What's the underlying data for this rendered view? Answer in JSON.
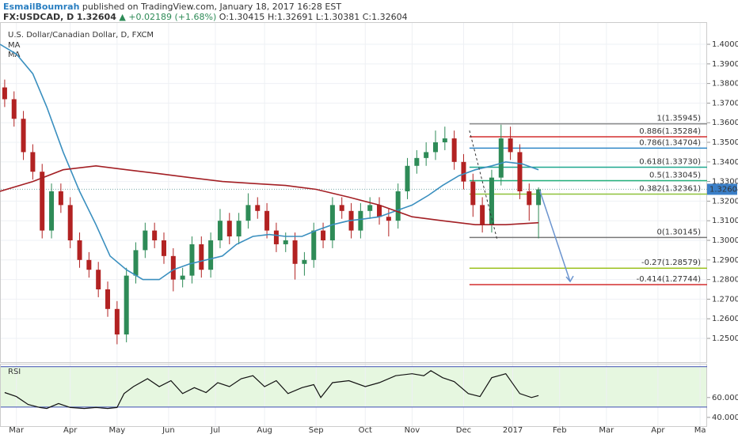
{
  "header": {
    "author": "EsmailBoumrah",
    "published": "published on TradingView.com, January 18, 2017 16:28 EST",
    "symbol": "FX:USDCAD, D",
    "price": "1.32604",
    "change": "▲ +0.02189 (+1.68%)",
    "open": "O:1.30415",
    "high": "H:1.32691",
    "low": "L:1.30381",
    "close": "C:1.32604"
  },
  "chart_data": {
    "type": "candlestick",
    "title": "U.S. Dollar/Canadian Dollar, D, FXCM",
    "up_color": "#2e8b57",
    "down_color": "#b22222",
    "xlim": [
      0,
      302
    ],
    "xticks": [
      {
        "value": 7,
        "label": "Mar"
      },
      {
        "value": 30,
        "label": "Apr"
      },
      {
        "value": 50,
        "label": "May"
      },
      {
        "value": 72,
        "label": "Jun"
      },
      {
        "value": 92,
        "label": "Jul"
      },
      {
        "value": 113,
        "label": "Aug"
      },
      {
        "value": 135,
        "label": "Sep"
      },
      {
        "value": 156,
        "label": "Oct"
      },
      {
        "value": 176,
        "label": "Nov"
      },
      {
        "value": 198,
        "label": "Dec"
      },
      {
        "value": 219,
        "label": "2017"
      },
      {
        "value": 239,
        "label": "Feb"
      },
      {
        "value": 259,
        "label": "Mar"
      },
      {
        "value": 281,
        "label": "Apr"
      },
      {
        "value": 299,
        "label": "Ma"
      }
    ],
    "ylim": [
      1.2379,
      1.4113
    ],
    "yticks": [
      {
        "value": 1.25,
        "label": "1.25000"
      },
      {
        "value": 1.26,
        "label": "1.26000"
      },
      {
        "value": 1.27,
        "label": "1.27000"
      },
      {
        "value": 1.28,
        "label": "1.28000"
      },
      {
        "value": 1.29,
        "label": "1.29000"
      },
      {
        "value": 1.3,
        "label": "1.30000"
      },
      {
        "value": 1.31,
        "label": "1.31000"
      },
      {
        "value": 1.32,
        "label": "1.32000"
      },
      {
        "value": 1.33,
        "label": "1.33000"
      },
      {
        "value": 1.34,
        "label": "1.34000"
      },
      {
        "value": 1.35,
        "label": "1.35000"
      },
      {
        "value": 1.36,
        "label": "1.36000"
      },
      {
        "value": 1.37,
        "label": "1.37000"
      },
      {
        "value": 1.38,
        "label": "1.38000"
      },
      {
        "value": 1.39,
        "label": "1.39000"
      },
      {
        "value": 1.4,
        "label": "1.40000"
      }
    ],
    "grid": true,
    "x": [
      2,
      6,
      10,
      14,
      18,
      22,
      26,
      30,
      34,
      38,
      42,
      46,
      50,
      54,
      58,
      62,
      66,
      70,
      74,
      78,
      82,
      86,
      90,
      94,
      98,
      102,
      106,
      110,
      114,
      118,
      122,
      126,
      130,
      134,
      138,
      142,
      146,
      150,
      154,
      158,
      162,
      166,
      170,
      174,
      178,
      182,
      186,
      190,
      194,
      198,
      202,
      206,
      210,
      214,
      218,
      222,
      226,
      230
    ],
    "open": [
      1.378,
      1.372,
      1.362,
      1.345,
      1.335,
      1.305,
      1.325,
      1.318,
      1.3,
      1.29,
      1.285,
      1.275,
      1.265,
      1.252,
      1.282,
      1.295,
      1.305,
      1.3,
      1.292,
      1.28,
      1.282,
      1.298,
      1.285,
      1.3,
      1.31,
      1.302,
      1.31,
      1.318,
      1.315,
      1.305,
      1.298,
      1.3,
      1.288,
      1.29,
      1.305,
      1.3,
      1.318,
      1.315,
      1.305,
      1.315,
      1.318,
      1.312,
      1.31,
      1.325,
      1.338,
      1.342,
      1.345,
      1.35,
      1.352,
      1.34,
      1.33,
      1.318,
      1.308,
      1.332,
      1.352,
      1.345,
      1.325,
      1.318
    ],
    "high": [
      1.382,
      1.376,
      1.366,
      1.349,
      1.339,
      1.329,
      1.329,
      1.322,
      1.304,
      1.294,
      1.289,
      1.279,
      1.269,
      1.286,
      1.299,
      1.309,
      1.309,
      1.304,
      1.296,
      1.286,
      1.302,
      1.302,
      1.304,
      1.316,
      1.314,
      1.314,
      1.324,
      1.322,
      1.319,
      1.309,
      1.304,
      1.304,
      1.294,
      1.309,
      1.309,
      1.322,
      1.322,
      1.319,
      1.319,
      1.322,
      1.322,
      1.316,
      1.329,
      1.342,
      1.346,
      1.35,
      1.356,
      1.358,
      1.356,
      1.344,
      1.334,
      1.322,
      1.336,
      1.359,
      1.358,
      1.349,
      1.329,
      1.327
    ],
    "low": [
      1.368,
      1.358,
      1.341,
      1.331,
      1.301,
      1.301,
      1.314,
      1.296,
      1.286,
      1.281,
      1.271,
      1.261,
      1.247,
      1.248,
      1.278,
      1.291,
      1.296,
      1.288,
      1.274,
      1.276,
      1.278,
      1.281,
      1.281,
      1.296,
      1.298,
      1.298,
      1.306,
      1.311,
      1.301,
      1.294,
      1.294,
      1.28,
      1.282,
      1.286,
      1.296,
      1.296,
      1.311,
      1.301,
      1.301,
      1.311,
      1.308,
      1.302,
      1.306,
      1.321,
      1.334,
      1.338,
      1.341,
      1.346,
      1.336,
      1.326,
      1.312,
      1.304,
      1.304,
      1.328,
      1.341,
      1.321,
      1.31,
      1.301
    ],
    "close": [
      1.372,
      1.362,
      1.345,
      1.335,
      1.305,
      1.325,
      1.318,
      1.3,
      1.29,
      1.285,
      1.275,
      1.265,
      1.252,
      1.282,
      1.295,
      1.305,
      1.3,
      1.292,
      1.28,
      1.282,
      1.298,
      1.285,
      1.3,
      1.31,
      1.302,
      1.31,
      1.318,
      1.315,
      1.305,
      1.298,
      1.3,
      1.288,
      1.29,
      1.305,
      1.3,
      1.318,
      1.315,
      1.305,
      1.315,
      1.318,
      1.312,
      1.31,
      1.325,
      1.338,
      1.342,
      1.345,
      1.35,
      1.352,
      1.34,
      1.33,
      1.318,
      1.308,
      1.332,
      1.352,
      1.345,
      1.325,
      1.318,
      1.326
    ],
    "series": [
      {
        "name": "MA",
        "color": "#3a8fbf",
        "x": [
          0,
          7,
          14,
          20,
          27,
          34,
          41,
          47,
          54,
          61,
          68,
          74,
          81,
          88,
          95,
          101,
          108,
          115,
          122,
          129,
          135,
          142,
          149,
          156,
          162,
          169,
          176,
          183,
          189,
          196,
          203,
          210,
          216,
          223,
          230
        ],
        "values": [
          1.4,
          1.395,
          1.385,
          1.368,
          1.345,
          1.325,
          1.308,
          1.292,
          1.285,
          1.28,
          1.28,
          1.285,
          1.288,
          1.29,
          1.292,
          1.298,
          1.302,
          1.303,
          1.302,
          1.302,
          1.305,
          1.308,
          1.31,
          1.311,
          1.312,
          1.315,
          1.318,
          1.323,
          1.328,
          1.333,
          1.336,
          1.338,
          1.34,
          1.339,
          1.336
        ]
      },
      {
        "name": "MA",
        "color": "#a31f24",
        "x": [
          0,
          14,
          27,
          41,
          54,
          68,
          81,
          95,
          108,
          122,
          135,
          149,
          162,
          176,
          189,
          203,
          216,
          230
        ],
        "values": [
          1.325,
          1.33,
          1.336,
          1.338,
          1.336,
          1.334,
          1.332,
          1.33,
          1.329,
          1.328,
          1.326,
          1.322,
          1.318,
          1.312,
          1.31,
          1.308,
          1.308,
          1.309
        ]
      }
    ],
    "last": {
      "value": 1.32604,
      "label": "1.32604",
      "color": "#3a7fc8"
    },
    "fib": {
      "start": 200.5,
      "levels": [
        {
          "value": 1.35945,
          "label": "1(1.35945)",
          "color": "#888888"
        },
        {
          "value": 1.35284,
          "label": "0.886(1.35284)",
          "color": "#d32f2f"
        },
        {
          "value": 1.34704,
          "label": "0.786(1.34704)",
          "color": "#2f87c8"
        },
        {
          "value": 1.3373,
          "label": "0.618(1.33730)",
          "color": "#1fa88f"
        },
        {
          "value": 1.33045,
          "label": "0.5(1.33045)",
          "color": "#22b07a"
        },
        {
          "value": 1.32361,
          "label": "0.382(1.32361)",
          "color": "#8fc23a"
        },
        {
          "value": 1.30145,
          "label": "0(1.30145)",
          "color": "#777777"
        },
        {
          "value": 1.28579,
          "label": "-0.27(1.28579)",
          "color": "#9cc21f"
        },
        {
          "value": 1.27744,
          "label": "-0.414(1.27744)",
          "color": "#d32f2f"
        }
      ]
    },
    "trendline": {
      "x": [
        200.5,
        212.4
      ],
      "y": [
        1.356,
        1.3
      ]
    },
    "projection": {
      "x": [
        230.5,
        243.5
      ],
      "y": [
        1.3255,
        1.279
      ],
      "color": "#6b94cf"
    },
    "rsi": {
      "title": "RSI",
      "color": "#111111",
      "ylim": [
        30.4,
        93.3
      ],
      "band": [
        50.4,
        91.1
      ],
      "yticks": [
        {
          "value": 40,
          "label": "40.0000"
        },
        {
          "value": 60,
          "label": "60.0000"
        }
      ],
      "x": [
        2,
        7,
        12,
        17,
        20,
        25,
        30,
        36,
        41,
        46,
        50,
        53,
        57,
        63,
        68,
        73,
        78,
        83,
        88,
        93,
        98,
        103,
        108,
        113,
        118,
        123,
        129,
        134,
        137,
        142,
        149,
        156,
        162,
        169,
        176,
        181,
        184,
        189,
        194,
        200,
        205,
        210,
        216,
        222,
        227,
        230
      ],
      "values": [
        65,
        61,
        53,
        50,
        49,
        54,
        50,
        49,
        50,
        49,
        50,
        64,
        71,
        79,
        71,
        77,
        64,
        70,
        65,
        75,
        71,
        79,
        82,
        71,
        77,
        64,
        70,
        73,
        60,
        75,
        77,
        71,
        75,
        82,
        84,
        82,
        87,
        80,
        76,
        64,
        61,
        80,
        84,
        64,
        60,
        62
      ]
    }
  }
}
